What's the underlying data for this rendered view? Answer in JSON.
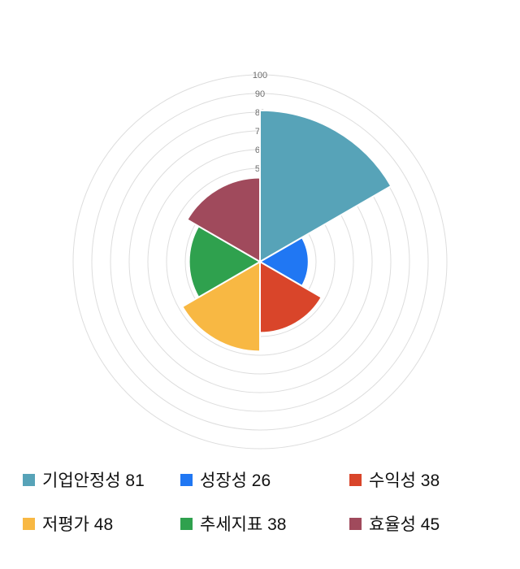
{
  "chart_data": {
    "type": "polar-area",
    "title": "",
    "categories": [
      "기업안정성",
      "성장성",
      "수익성",
      "저평가",
      "추세지표",
      "효율성"
    ],
    "values": [
      81,
      26,
      38,
      48,
      38,
      45
    ],
    "colors": [
      "#57a3b8",
      "#2077f3",
      "#d9452a",
      "#f8b843",
      "#2fa14e",
      "#a04a5c"
    ],
    "start_angle_deg": 0,
    "direction": "clockwise",
    "axis": {
      "min": 0,
      "max": 100,
      "tick_interval": 10,
      "visible_tick_labels": [
        "100",
        "90",
        "80",
        "70",
        "60",
        "50"
      ]
    },
    "grid": {
      "on": true,
      "color": "#dddddd"
    },
    "tick_label_color": "#6e6e6e",
    "legend_position": "bottom"
  },
  "legend": {
    "items": [
      {
        "label": "기업안정성 81",
        "color": "#57a3b8"
      },
      {
        "label": "성장성 26",
        "color": "#2077f3"
      },
      {
        "label": "수익성 38",
        "color": "#d9452a"
      },
      {
        "label": "저평가 48",
        "color": "#f8b843"
      },
      {
        "label": "추세지표 38",
        "color": "#2fa14e"
      },
      {
        "label": "효율성 45",
        "color": "#a04a5c"
      }
    ]
  }
}
